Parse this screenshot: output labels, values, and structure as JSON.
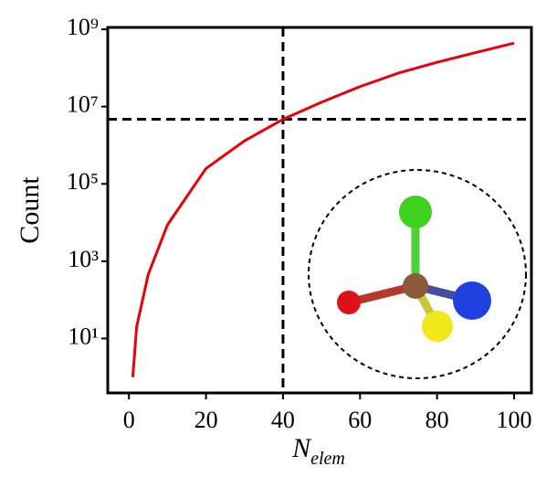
{
  "chart_data": {
    "type": "line",
    "log_y": true,
    "grid": false,
    "y_label": "Count",
    "x_label": {
      "symbol": "N",
      "subscript": "elem"
    },
    "x": [
      1,
      2,
      5,
      10,
      20,
      30,
      40,
      50,
      60,
      70,
      80,
      90,
      100
    ],
    "series": [
      {
        "color": "#e8000b",
        "values": [
          1,
          20,
          450,
          8700,
          250000,
          1300000,
          4700000,
          13000000,
          33000000,
          74000000,
          140000000,
          250000000,
          440000000
        ]
      }
    ],
    "reference_lines": {
      "x": 40,
      "y": 4700000,
      "style": "dashed",
      "color": "#000000"
    },
    "xlim": [
      -5.5,
      104.5
    ],
    "xticks": [
      0,
      20,
      40,
      60,
      80,
      100
    ],
    "ylim": [
      0.39,
      1120000000
    ],
    "yticks": [
      {
        "value": 10,
        "label": "10¹"
      },
      {
        "value": 1000,
        "label": "10³"
      },
      {
        "value": 100000,
        "label": "10⁵"
      },
      {
        "value": 10000000,
        "label": "10⁷"
      },
      {
        "value": 1000000000,
        "label": "10⁹"
      }
    ]
  }
}
